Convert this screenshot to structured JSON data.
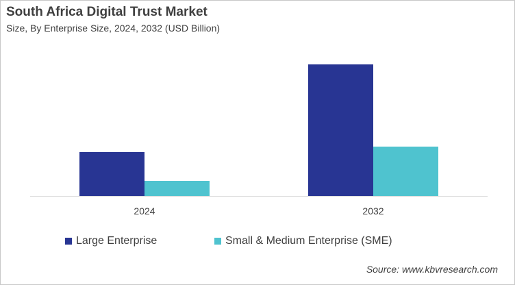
{
  "chart_data": {
    "type": "bar",
    "title": "South Africa Digital Trust Market",
    "subtitle": "Size, By Enterprise Size, 2024, 2032 (USD Billion)",
    "categories": [
      "2024",
      "2032"
    ],
    "series": [
      {
        "name": "Large Enterprise",
        "values": [
          0.64,
          1.92
        ],
        "color": "#283593"
      },
      {
        "name": "Small & Medium Enterprise (SME)",
        "values": [
          0.22,
          0.72
        ],
        "color": "#4fc3cf"
      }
    ],
    "ylim": [
      0,
      2
    ],
    "grid": false,
    "y_axis_shown": false,
    "legend_placement": "bottom",
    "source": "Source: www.kbvresearch.com"
  }
}
